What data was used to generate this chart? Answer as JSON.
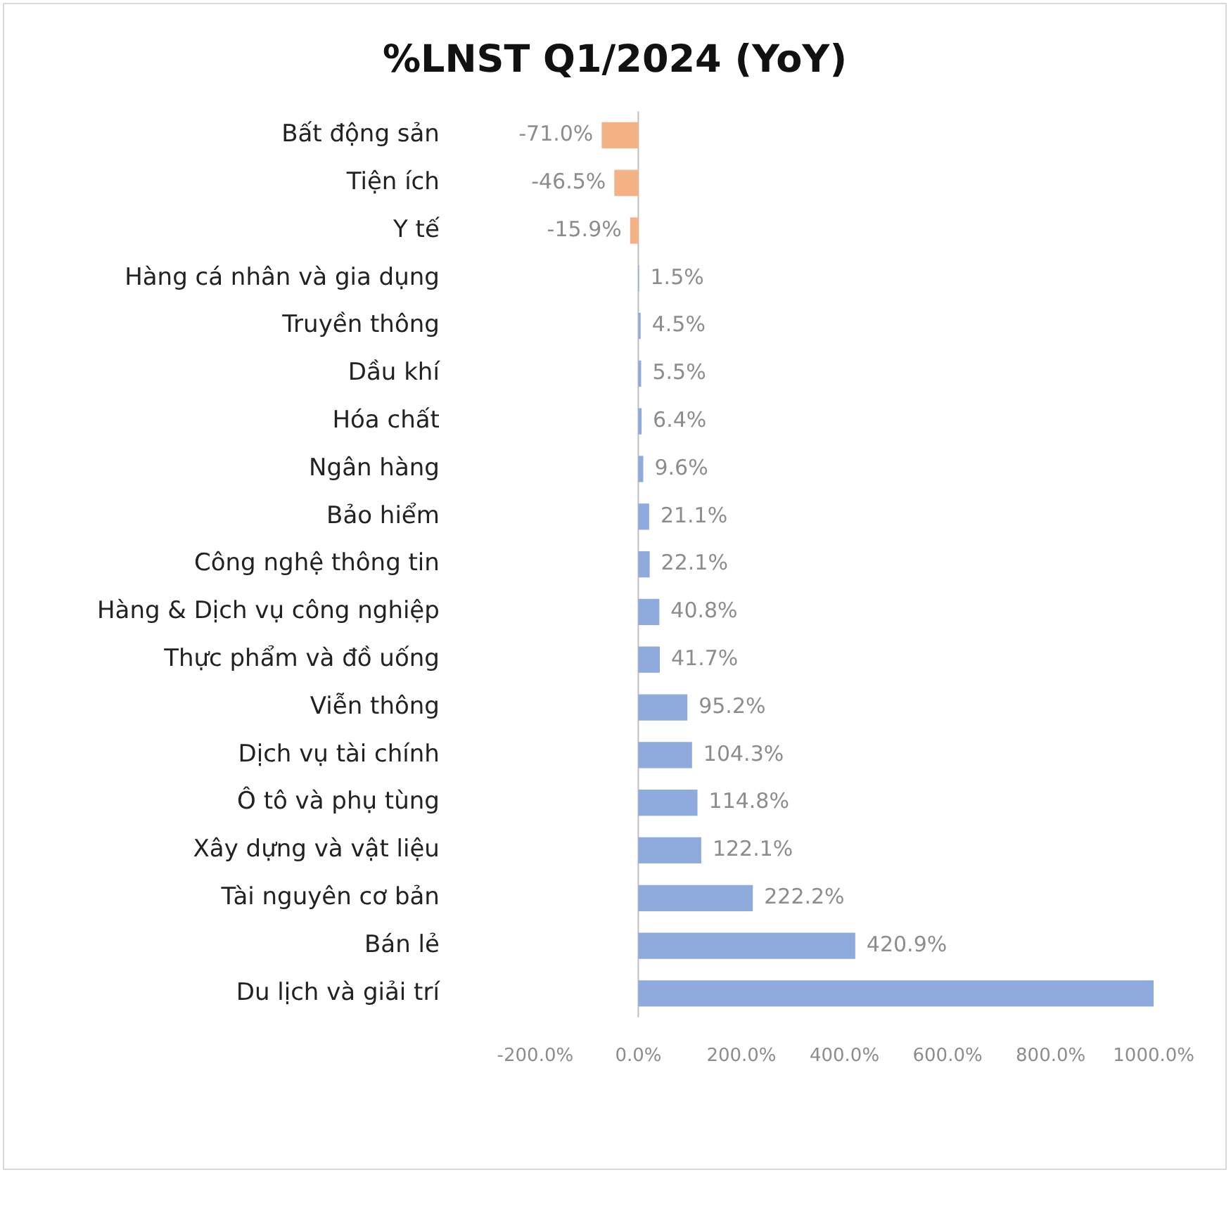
{
  "chart_data": {
    "type": "bar",
    "orientation": "horizontal",
    "title": "%LNST Q1/2024 (YoY)",
    "categories": [
      "Bất động sản",
      "Tiện ích",
      "Y tế",
      "Hàng cá nhân và gia dụng",
      "Truyền thông",
      "Dầu khí",
      "Hóa chất",
      "Ngân hàng",
      "Bảo hiểm",
      "Công nghệ thông tin",
      "Hàng & Dịch vụ công nghiệp",
      "Thực phẩm và đồ uống",
      "Viễn thông",
      "Dịch vụ tài chính",
      "Ô tô và phụ tùng",
      "Xây dựng và vật liệu",
      "Tài nguyên cơ bản",
      "Bán lẻ",
      "Du lịch và giải trí"
    ],
    "values": [
      -71.0,
      -46.5,
      -15.9,
      1.5,
      4.5,
      5.5,
      6.4,
      9.6,
      21.1,
      22.1,
      40.8,
      41.7,
      95.2,
      104.3,
      114.8,
      122.1,
      222.2,
      420.9,
      1000
    ],
    "colors": [
      "#f4b183",
      "#f4b183",
      "#f4b183",
      "#8faadc",
      "#8faadc",
      "#8faadc",
      "#8faadc",
      "#8faadc",
      "#8faadc",
      "#8faadc",
      "#8faadc",
      "#8faadc",
      "#8faadc",
      "#8faadc",
      "#8faadc",
      "#8faadc",
      "#8faadc",
      "#8faadc",
      "#8faadc"
    ],
    "value_labels": [
      "-71.0%",
      "-46.5%",
      "-15.9%",
      "1.5%",
      "4.5%",
      "5.5%",
      "6.4%",
      "9.6%",
      "21.1%",
      "22.1%",
      "40.8%",
      "41.7%",
      "95.2%",
      "104.3%",
      "114.8%",
      "122.1%",
      "222.2%",
      "420.9%",
      null
    ],
    "xlim": [
      -200,
      1000
    ],
    "xticks": [
      {
        "value": -200,
        "label": "-200.0%"
      },
      {
        "value": 0,
        "label": "0.0%"
      },
      {
        "value": 200,
        "label": "200.0%"
      },
      {
        "value": 400,
        "label": "400.0%"
      },
      {
        "value": 600,
        "label": "600.0%"
      },
      {
        "value": 800,
        "label": "800.0%"
      },
      {
        "value": 1000,
        "label": "1000.0%"
      }
    ],
    "ref_lines": [
      {
        "axis": "x",
        "value": 0,
        "color": "#bfbfbf"
      }
    ],
    "grid": false,
    "legend": false
  }
}
